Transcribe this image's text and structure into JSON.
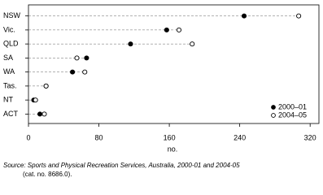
{
  "chart_data": {
    "type": "dot",
    "categories": [
      "NSW",
      "Vic.",
      "QLD",
      "SA",
      "WA",
      "Tas.",
      "NT",
      "ACT"
    ],
    "series": [
      {
        "name": "2000–01",
        "color": "#000000",
        "marker": "filled",
        "values": [
          245,
          157,
          116,
          66,
          50,
          20,
          6,
          13
        ]
      },
      {
        "name": "2004–05",
        "color": "#000000",
        "marker": "open",
        "values": [
          307,
          171,
          186,
          55,
          64,
          20,
          8,
          18
        ]
      }
    ],
    "xlim": [
      0,
      330
    ],
    "xticks": [
      0,
      80,
      160,
      240,
      320
    ],
    "xlabel": "no.",
    "legend": "lower right",
    "source": [
      "Source: Sports and Physical Recreation Services, Australia, 2000-01 and 2004-05",
      "(cat. no. 8686.0)."
    ]
  }
}
